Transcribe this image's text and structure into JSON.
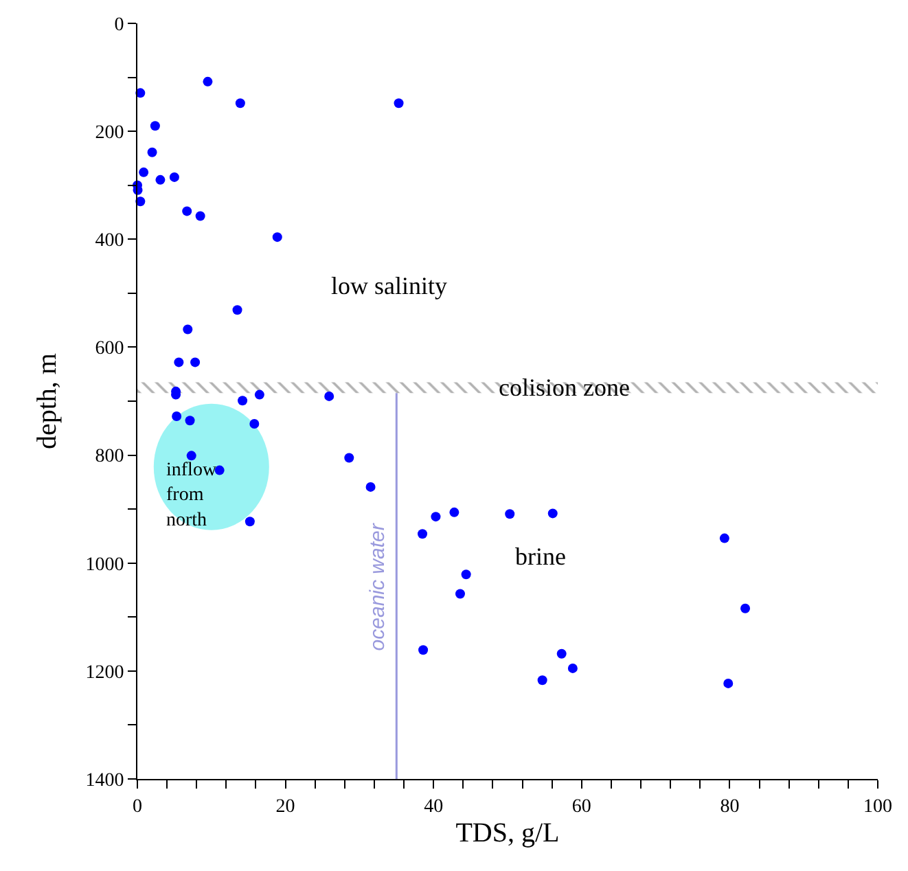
{
  "chart_data": {
    "type": "scatter",
    "xlabel": "TDS, g/L",
    "ylabel": "depth, m",
    "x": [
      0.4,
      9.5,
      13.9,
      35.3,
      2.4,
      2.0,
      0.85,
      3.1,
      5.0,
      0,
      0.05,
      0.4,
      6.7,
      8.5,
      18.9,
      13.5,
      6.8,
      5.6,
      7.8,
      5.2,
      5.2,
      14.2,
      16.5,
      25.9,
      5.3,
      7.1,
      15.8,
      7.3,
      28.6,
      11.1,
      31.5,
      15.2,
      40.3,
      42.8,
      38.5,
      50.3,
      56.1,
      79.3,
      44.4,
      43.6,
      82.1,
      38.6,
      57.3,
      58.8,
      54.7,
      79.8
    ],
    "values": [
      129,
      108,
      148,
      148,
      190,
      239,
      276,
      290,
      285,
      300,
      309,
      330,
      348,
      357,
      396,
      531,
      567,
      628,
      628,
      682,
      688,
      699,
      688,
      691,
      728,
      736,
      742,
      801,
      805,
      828,
      859,
      923,
      914,
      906,
      946,
      909,
      908,
      954,
      1021,
      1057,
      1084,
      1161,
      1168,
      1195,
      1217,
      1223
    ],
    "color": "#0000ff",
    "marker": "circle",
    "xlim": [
      0,
      100
    ],
    "ylim": [
      1400,
      0
    ],
    "xticks": [
      0,
      {
        "value": 4,
        "label": null
      },
      {
        "value": 8,
        "label": null
      },
      {
        "value": 12,
        "label": null
      },
      {
        "value": 16,
        "label": null
      },
      20,
      {
        "value": 24,
        "label": null
      },
      {
        "value": 28,
        "label": null
      },
      {
        "value": 32,
        "label": null
      },
      {
        "value": 36,
        "label": null
      },
      40,
      {
        "value": 44,
        "label": null
      },
      {
        "value": 48,
        "label": null
      },
      {
        "value": 52,
        "label": null
      },
      {
        "value": 56,
        "label": null
      },
      60,
      {
        "value": 64,
        "label": null
      },
      {
        "value": 68,
        "label": null
      },
      {
        "value": 72,
        "label": null
      },
      {
        "value": 76,
        "label": null
      },
      80,
      {
        "value": 84,
        "label": null
      },
      {
        "value": 88,
        "label": null
      },
      {
        "value": 92,
        "label": null
      },
      {
        "value": 96,
        "label": null
      },
      100
    ],
    "yticks": [
      0,
      {
        "value": 100,
        "label": null
      },
      200,
      {
        "value": 300,
        "label": null
      },
      400,
      {
        "value": 500,
        "label": null
      },
      600,
      {
        "value": 700,
        "label": null
      },
      800,
      {
        "value": 900,
        "label": null
      },
      1000,
      {
        "value": 1100,
        "label": null
      },
      1200,
      {
        "value": 1300,
        "label": null
      },
      1400
    ],
    "ref_lines": [
      {
        "axis": "x",
        "value": 35,
        "label": "oceanic water",
        "color": "#9999dd"
      }
    ],
    "bands": [
      {
        "axis": "y",
        "from": 665,
        "to": 685,
        "color": "#666666",
        "label": "colision zone"
      }
    ],
    "annotations": [
      "low salinity",
      "brine",
      "inflow\nfrom\nnorth"
    ],
    "grid": false
  }
}
